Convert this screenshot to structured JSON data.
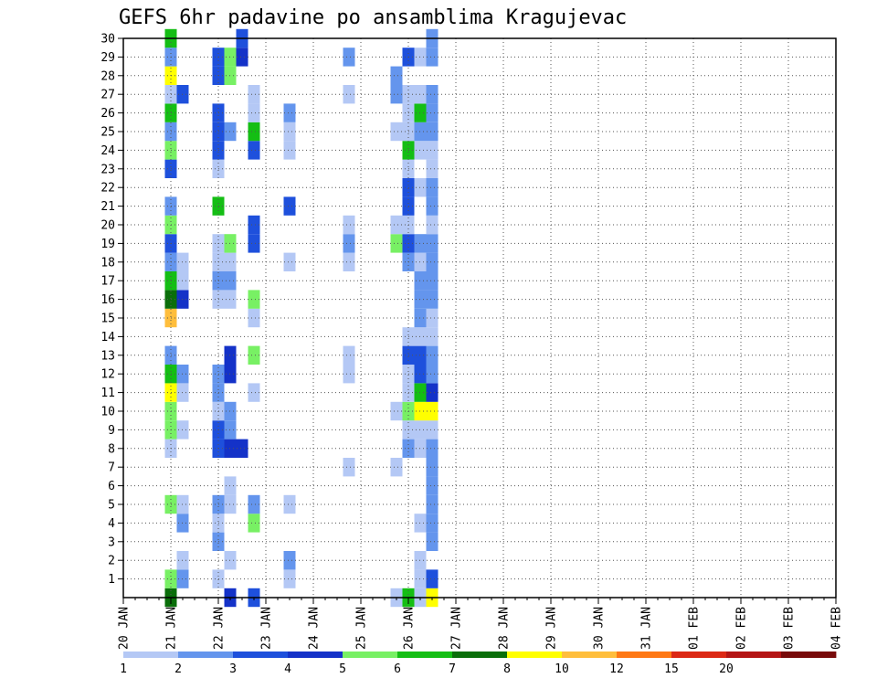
{
  "chart_data": {
    "type": "heatmap",
    "title": "GEFS 6hr padavine po ansamblima Kragujevac",
    "xlabel": "",
    "ylabel": "",
    "x_ticks": [
      "20 JAN",
      "21 JAN",
      "22 JAN",
      "23 JAN",
      "24 JAN",
      "25 JAN",
      "26 JAN",
      "27 JAN",
      "28 JAN",
      "29 JAN",
      "30 JAN",
      "31 JAN",
      "01 FEB",
      "02 FEB",
      "03 FEB",
      "04 FEB"
    ],
    "y_ticks": [
      1,
      2,
      3,
      4,
      5,
      6,
      7,
      8,
      9,
      10,
      11,
      12,
      13,
      14,
      15,
      16,
      17,
      18,
      19,
      20,
      21,
      22,
      23,
      24,
      25,
      26,
      27,
      28,
      29,
      30
    ],
    "xlim": [
      "20 JAN",
      "04 FEB"
    ],
    "ylim": [
      0,
      30
    ],
    "time_step_hours": 6,
    "grid": "dotted",
    "legend_position": "bottom",
    "levels": [
      1,
      2,
      3,
      4,
      5,
      6,
      7,
      8,
      10,
      12,
      15,
      20
    ],
    "level_labels": [
      "1",
      "2",
      "3",
      "4",
      "5",
      "6",
      "7",
      "8",
      "10",
      "12",
      "15",
      "20"
    ],
    "colors": [
      "#b4c8f5",
      "#6495ed",
      "#1e50dc",
      "#1432c8",
      "#78f064",
      "#14be14",
      "#0a6e0a",
      "#ffff00",
      "#ffbe3c",
      "#ff7814",
      "#dc2814",
      "#b41414",
      "#780a0a"
    ],
    "cells_format": "[step, member, level_index] where step = 6-hour intervals since 20 JAN 00Z and level_index indexes colors",
    "cells": [
      [
        4,
        0,
        6
      ],
      [
        4,
        1,
        4
      ],
      [
        4,
        5,
        4
      ],
      [
        4,
        8,
        0
      ],
      [
        4,
        9,
        4
      ],
      [
        4,
        10,
        4
      ],
      [
        4,
        11,
        7
      ],
      [
        4,
        12,
        5
      ],
      [
        4,
        13,
        1
      ],
      [
        4,
        15,
        8
      ],
      [
        4,
        16,
        6
      ],
      [
        4,
        17,
        5
      ],
      [
        4,
        18,
        1
      ],
      [
        4,
        19,
        2
      ],
      [
        4,
        20,
        4
      ],
      [
        4,
        21,
        1
      ],
      [
        4,
        23,
        2
      ],
      [
        4,
        24,
        4
      ],
      [
        4,
        25,
        1
      ],
      [
        4,
        26,
        5
      ],
      [
        4,
        27,
        0
      ],
      [
        4,
        28,
        7
      ],
      [
        4,
        29,
        1
      ],
      [
        4,
        30,
        5
      ],
      [
        5,
        1,
        1
      ],
      [
        5,
        2,
        0
      ],
      [
        5,
        4,
        1
      ],
      [
        5,
        5,
        0
      ],
      [
        5,
        9,
        0
      ],
      [
        5,
        11,
        0
      ],
      [
        5,
        12,
        1
      ],
      [
        5,
        16,
        3
      ],
      [
        5,
        17,
        0
      ],
      [
        5,
        18,
        0
      ],
      [
        5,
        27,
        2
      ],
      [
        8,
        1,
        0
      ],
      [
        8,
        3,
        1
      ],
      [
        8,
        4,
        0
      ],
      [
        8,
        5,
        1
      ],
      [
        8,
        8,
        2
      ],
      [
        8,
        9,
        2
      ],
      [
        8,
        10,
        0
      ],
      [
        8,
        11,
        1
      ],
      [
        8,
        12,
        1
      ],
      [
        8,
        16,
        0
      ],
      [
        8,
        17,
        1
      ],
      [
        8,
        18,
        0
      ],
      [
        8,
        19,
        0
      ],
      [
        8,
        21,
        5
      ],
      [
        8,
        23,
        0
      ],
      [
        8,
        24,
        2
      ],
      [
        8,
        25,
        2
      ],
      [
        8,
        26,
        2
      ],
      [
        8,
        28,
        2
      ],
      [
        8,
        29,
        2
      ],
      [
        9,
        0,
        3
      ],
      [
        9,
        2,
        0
      ],
      [
        9,
        5,
        0
      ],
      [
        9,
        6,
        0
      ],
      [
        9,
        8,
        3
      ],
      [
        9,
        9,
        1
      ],
      [
        9,
        10,
        1
      ],
      [
        9,
        12,
        3
      ],
      [
        9,
        13,
        3
      ],
      [
        9,
        16,
        0
      ],
      [
        9,
        17,
        1
      ],
      [
        9,
        18,
        0
      ],
      [
        9,
        19,
        4
      ],
      [
        9,
        25,
        1
      ],
      [
        9,
        28,
        4
      ],
      [
        9,
        29,
        4
      ],
      [
        10,
        8,
        3
      ],
      [
        10,
        29,
        3
      ],
      [
        10,
        30,
        2
      ],
      [
        11,
        0,
        2
      ],
      [
        11,
        4,
        4
      ],
      [
        11,
        5,
        1
      ],
      [
        11,
        11,
        0
      ],
      [
        11,
        13,
        4
      ],
      [
        11,
        15,
        0
      ],
      [
        11,
        16,
        4
      ],
      [
        11,
        19,
        2
      ],
      [
        11,
        20,
        2
      ],
      [
        11,
        24,
        2
      ],
      [
        11,
        25,
        5
      ],
      [
        11,
        26,
        0
      ],
      [
        11,
        27,
        0
      ],
      [
        14,
        1,
        0
      ],
      [
        14,
        2,
        1
      ],
      [
        14,
        5,
        0
      ],
      [
        14,
        18,
        0
      ],
      [
        14,
        21,
        2
      ],
      [
        14,
        24,
        0
      ],
      [
        14,
        25,
        0
      ],
      [
        14,
        26,
        1
      ],
      [
        19,
        7,
        0
      ],
      [
        19,
        12,
        0
      ],
      [
        19,
        13,
        0
      ],
      [
        19,
        18,
        0
      ],
      [
        19,
        19,
        1
      ],
      [
        19,
        20,
        0
      ],
      [
        19,
        27,
        0
      ],
      [
        19,
        29,
        1
      ],
      [
        23,
        0,
        0
      ],
      [
        23,
        7,
        0
      ],
      [
        23,
        10,
        0
      ],
      [
        23,
        19,
        4
      ],
      [
        23,
        20,
        0
      ],
      [
        23,
        25,
        0
      ],
      [
        23,
        27,
        1
      ],
      [
        23,
        28,
        1
      ],
      [
        24,
        0,
        5
      ],
      [
        24,
        8,
        1
      ],
      [
        24,
        9,
        0
      ],
      [
        24,
        10,
        4
      ],
      [
        24,
        11,
        0
      ],
      [
        24,
        12,
        0
      ],
      [
        24,
        13,
        2
      ],
      [
        24,
        14,
        0
      ],
      [
        24,
        18,
        1
      ],
      [
        24,
        19,
        2
      ],
      [
        24,
        20,
        0
      ],
      [
        24,
        21,
        2
      ],
      [
        24,
        22,
        2
      ],
      [
        24,
        23,
        0
      ],
      [
        24,
        24,
        5
      ],
      [
        24,
        25,
        0
      ],
      [
        24,
        26,
        0
      ],
      [
        24,
        27,
        0
      ],
      [
        24,
        29,
        2
      ],
      [
        25,
        0,
        0
      ],
      [
        25,
        1,
        0
      ],
      [
        25,
        2,
        0
      ],
      [
        25,
        4,
        0
      ],
      [
        25,
        8,
        0
      ],
      [
        25,
        9,
        0
      ],
      [
        25,
        10,
        7
      ],
      [
        25,
        11,
        5
      ],
      [
        25,
        12,
        2
      ],
      [
        25,
        13,
        2
      ],
      [
        25,
        14,
        0
      ],
      [
        25,
        15,
        1
      ],
      [
        25,
        16,
        1
      ],
      [
        25,
        17,
        1
      ],
      [
        25,
        18,
        0
      ],
      [
        25,
        19,
        1
      ],
      [
        25,
        22,
        0
      ],
      [
        25,
        24,
        0
      ],
      [
        25,
        25,
        1
      ],
      [
        25,
        26,
        5
      ],
      [
        25,
        27,
        0
      ],
      [
        25,
        29,
        0
      ],
      [
        26,
        0,
        7
      ],
      [
        26,
        1,
        2
      ],
      [
        26,
        3,
        1
      ],
      [
        26,
        4,
        1
      ],
      [
        26,
        5,
        1
      ],
      [
        26,
        6,
        1
      ],
      [
        26,
        7,
        1
      ],
      [
        26,
        8,
        1
      ],
      [
        26,
        9,
        0
      ],
      [
        26,
        10,
        7
      ],
      [
        26,
        11,
        3
      ],
      [
        26,
        12,
        1
      ],
      [
        26,
        13,
        1
      ],
      [
        26,
        14,
        0
      ],
      [
        26,
        15,
        0
      ],
      [
        26,
        16,
        1
      ],
      [
        26,
        17,
        1
      ],
      [
        26,
        18,
        1
      ],
      [
        26,
        19,
        1
      ],
      [
        26,
        20,
        0
      ],
      [
        26,
        21,
        1
      ],
      [
        26,
        22,
        1
      ],
      [
        26,
        23,
        0
      ],
      [
        26,
        24,
        0
      ],
      [
        26,
        25,
        1
      ],
      [
        26,
        26,
        1
      ],
      [
        26,
        27,
        1
      ],
      [
        26,
        29,
        1
      ],
      [
        26,
        30,
        1
      ]
    ]
  },
  "colorbar": {
    "labels": [
      "1",
      "2",
      "3",
      "4",
      "5",
      "6",
      "7",
      "8",
      "10",
      "12",
      "15",
      "20"
    ]
  }
}
